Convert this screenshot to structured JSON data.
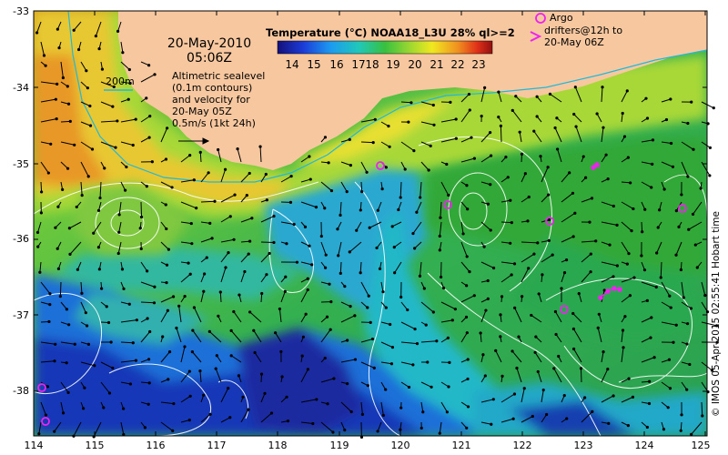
{
  "header": {
    "date_line": "20-May-2010",
    "time_line": "05:06Z"
  },
  "colorbar": {
    "title": "Temperature (°C) NOAA18_L3U 28% ql>=2",
    "ticks": [
      "14",
      "15",
      "16",
      "17",
      "18",
      "19",
      "20",
      "21",
      "22",
      "23"
    ]
  },
  "legend": {
    "contour_label": "200m",
    "altimetry_lines": [
      "Altimetric sealevel",
      "(0.1m contours)",
      "and velocity for",
      "20-May 05Z"
    ],
    "velocity_scale": "0.5m/s (1kt 24h)",
    "argo_label": "Argo",
    "drifters_lines": [
      "drifters@12h to",
      "20-May 06Z"
    ]
  },
  "axes": {
    "y_ticks": [
      "-33",
      "-34",
      "-35",
      "-36",
      "-37",
      "-38"
    ],
    "x_ticks": [
      "114",
      "115",
      "116",
      "117",
      "118",
      "119",
      "120",
      "121",
      "122",
      "123",
      "124",
      "125"
    ]
  },
  "credit": "© IMOS 05-Apr-2015 02:55:41 Hobart time",
  "colors": {
    "land": "#f7c8a0",
    "argo": "#ee22ee",
    "contour": "#ffffff",
    "isobath": "#22b8d8"
  }
}
